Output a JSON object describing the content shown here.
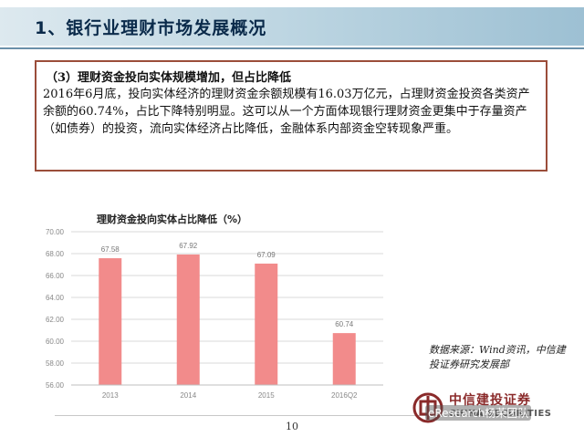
{
  "header": {
    "title": "1、银行业理财市场发展概况"
  },
  "textbox": {
    "heading": "（3）理财资金投向实体规模增加，但占比降低",
    "body": "2016年6月底，投向实体经济的理财资金余额规模有16.03万亿元，占理财资金投资各类资产余额的60.74%，占比下降特别明显。这可以从一个方面体现银行理财资金更集中于存量资产（如债券）的投资，流向实体经济占比降低，金融体系内部资金空转现象严重。"
  },
  "chart_data": {
    "type": "bar",
    "title": "理财资金投向实体占比降低（%）",
    "categories": [
      "2013",
      "2014",
      "2015",
      "2016Q2"
    ],
    "values": [
      67.58,
      67.92,
      67.09,
      60.74
    ],
    "data_labels": [
      "67.58",
      "67.92",
      "67.09",
      "60.74"
    ],
    "ylim": [
      56,
      70
    ],
    "yticks": [
      "56.00",
      "58.00",
      "60.00",
      "62.00",
      "64.00",
      "66.00",
      "68.00",
      "70.00"
    ],
    "grid": true,
    "bar_color": "#f28b8b"
  },
  "source": {
    "text": "数据来源：Wind资讯，中信建投证券研究发展部"
  },
  "logo": {
    "cn": "中信建投证券",
    "en": "CHINA SECURITIES"
  },
  "watermark": {
    "text": "eResearch杨荣团队"
  },
  "footer": {
    "page_number": "10"
  }
}
